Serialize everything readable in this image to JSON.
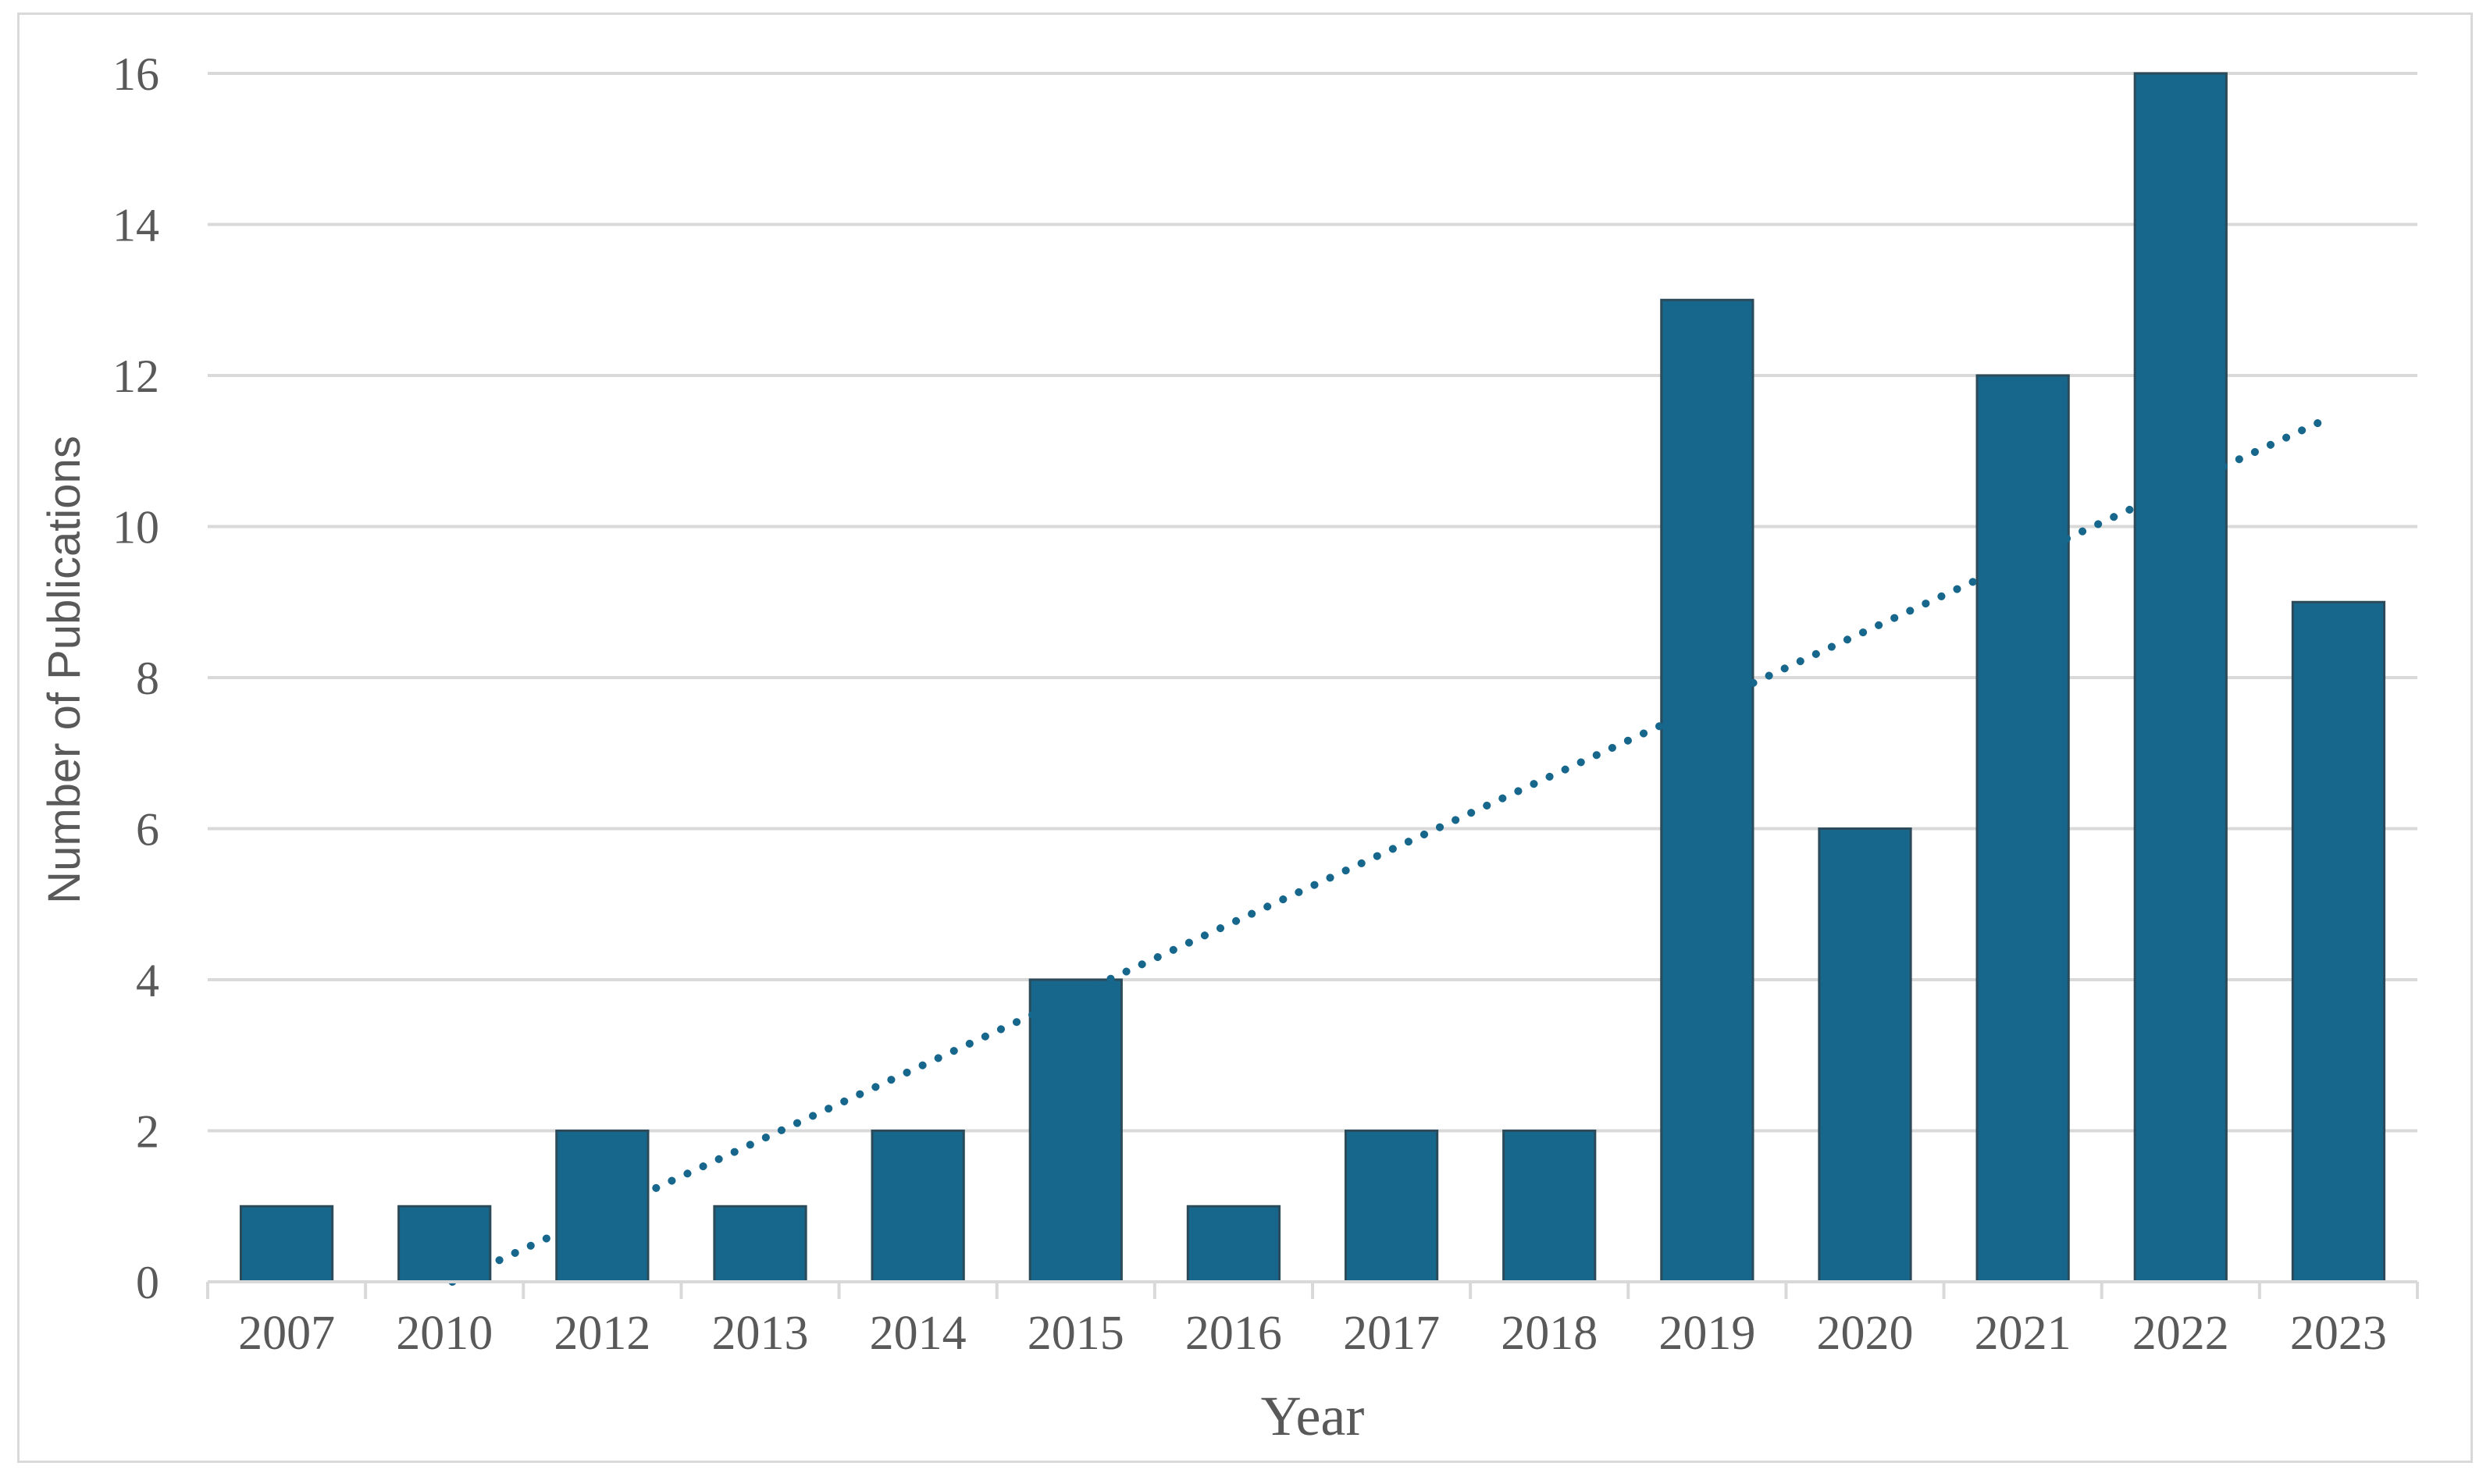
{
  "chart_data": {
    "type": "bar",
    "categories": [
      "2007",
      "2010",
      "2012",
      "2013",
      "2014",
      "2015",
      "2016",
      "2017",
      "2018",
      "2019",
      "2020",
      "2021",
      "2022",
      "2023"
    ],
    "values": [
      1,
      1,
      2,
      1,
      2,
      4,
      1,
      2,
      2,
      13,
      6,
      12,
      16,
      9
    ],
    "xlabel": "Year",
    "ylabel": "Number of Publications",
    "ylim": [
      0,
      16
    ],
    "yticks": [
      0,
      2,
      4,
      6,
      8,
      10,
      12,
      14,
      16
    ],
    "grid": true,
    "legend": "none",
    "bar_color": "#17678c",
    "bar_edge_color": "#2b4a5a",
    "trendline": {
      "type": "linear",
      "style": "dotted",
      "color": "#17678c",
      "start_value": 0,
      "end_value": 11.4
    }
  }
}
